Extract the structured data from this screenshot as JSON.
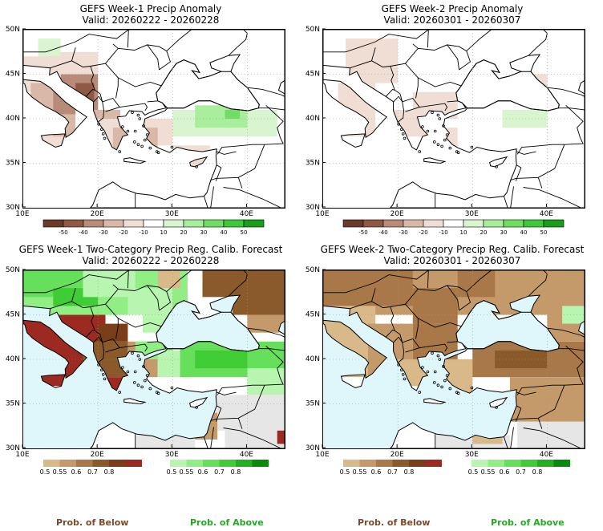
{
  "panels": [
    {
      "title": "GEFS Week-1 Precip Anomaly",
      "valid": "Valid: 20260222 - 20260228",
      "kind": "anomaly",
      "ocean": "#ffffff"
    },
    {
      "title": "GEFS Week-2 Precip Anomaly",
      "valid": "Valid: 20260301 - 20260307",
      "kind": "anomaly",
      "ocean": "#ffffff"
    },
    {
      "title": "GEFS Week-1 Two-Category Precip Reg. Calib. Forecast",
      "valid": "Valid: 20260222 - 20260228",
      "kind": "prob",
      "ocean": "#dff7fb"
    },
    {
      "title": "GEFS Week-2 Two-Category Precip Reg. Calib. Forecast",
      "valid": "Valid: 20260301 - 20260307",
      "kind": "prob",
      "ocean": "#dff7fb"
    }
  ],
  "axes": {
    "lat_labels": [
      "30N",
      "35N",
      "40N",
      "45N",
      "50N"
    ],
    "lon_labels": [
      "10E",
      "20E",
      "30E",
      "40E"
    ],
    "lat_range": [
      30,
      50
    ],
    "lon_range": [
      10,
      45
    ]
  },
  "anomaly_colorbar": {
    "ticks": [
      "-50",
      "-40",
      "-30",
      "-20",
      "-10",
      "10",
      "20",
      "30",
      "40",
      "50"
    ],
    "colors": [
      "#6b3a2a",
      "#8f5a45",
      "#b88a78",
      "#d9b8a8",
      "#f0ddd3",
      "#ffffff",
      "#d8f5d0",
      "#a8ee9c",
      "#70de64",
      "#3ec83a",
      "#1a9e1a"
    ]
  },
  "below_colorbar": {
    "ticks": [
      "0.5",
      "0.55",
      "0.6",
      "0.7",
      "0.8"
    ],
    "colors": [
      "#d9b98a",
      "#c49a6a",
      "#a87848",
      "#8a5a2a",
      "#7a3f1a",
      "#9c2a20"
    ]
  },
  "above_colorbar": {
    "ticks": [
      "0.5",
      "0.55",
      "0.6",
      "0.7",
      "0.8"
    ],
    "colors": [
      "#b8f5b0",
      "#90ee84",
      "#66e05a",
      "#40cc34",
      "#22b020",
      "#0a8a0a"
    ]
  },
  "legend_labels": {
    "below": "Prob. of Below",
    "above": "Prob. of Above"
  },
  "colors": {
    "below_label": "#7a4a2a",
    "above_label": "#22aa22",
    "land_no_data": "#e6e6e6"
  }
}
